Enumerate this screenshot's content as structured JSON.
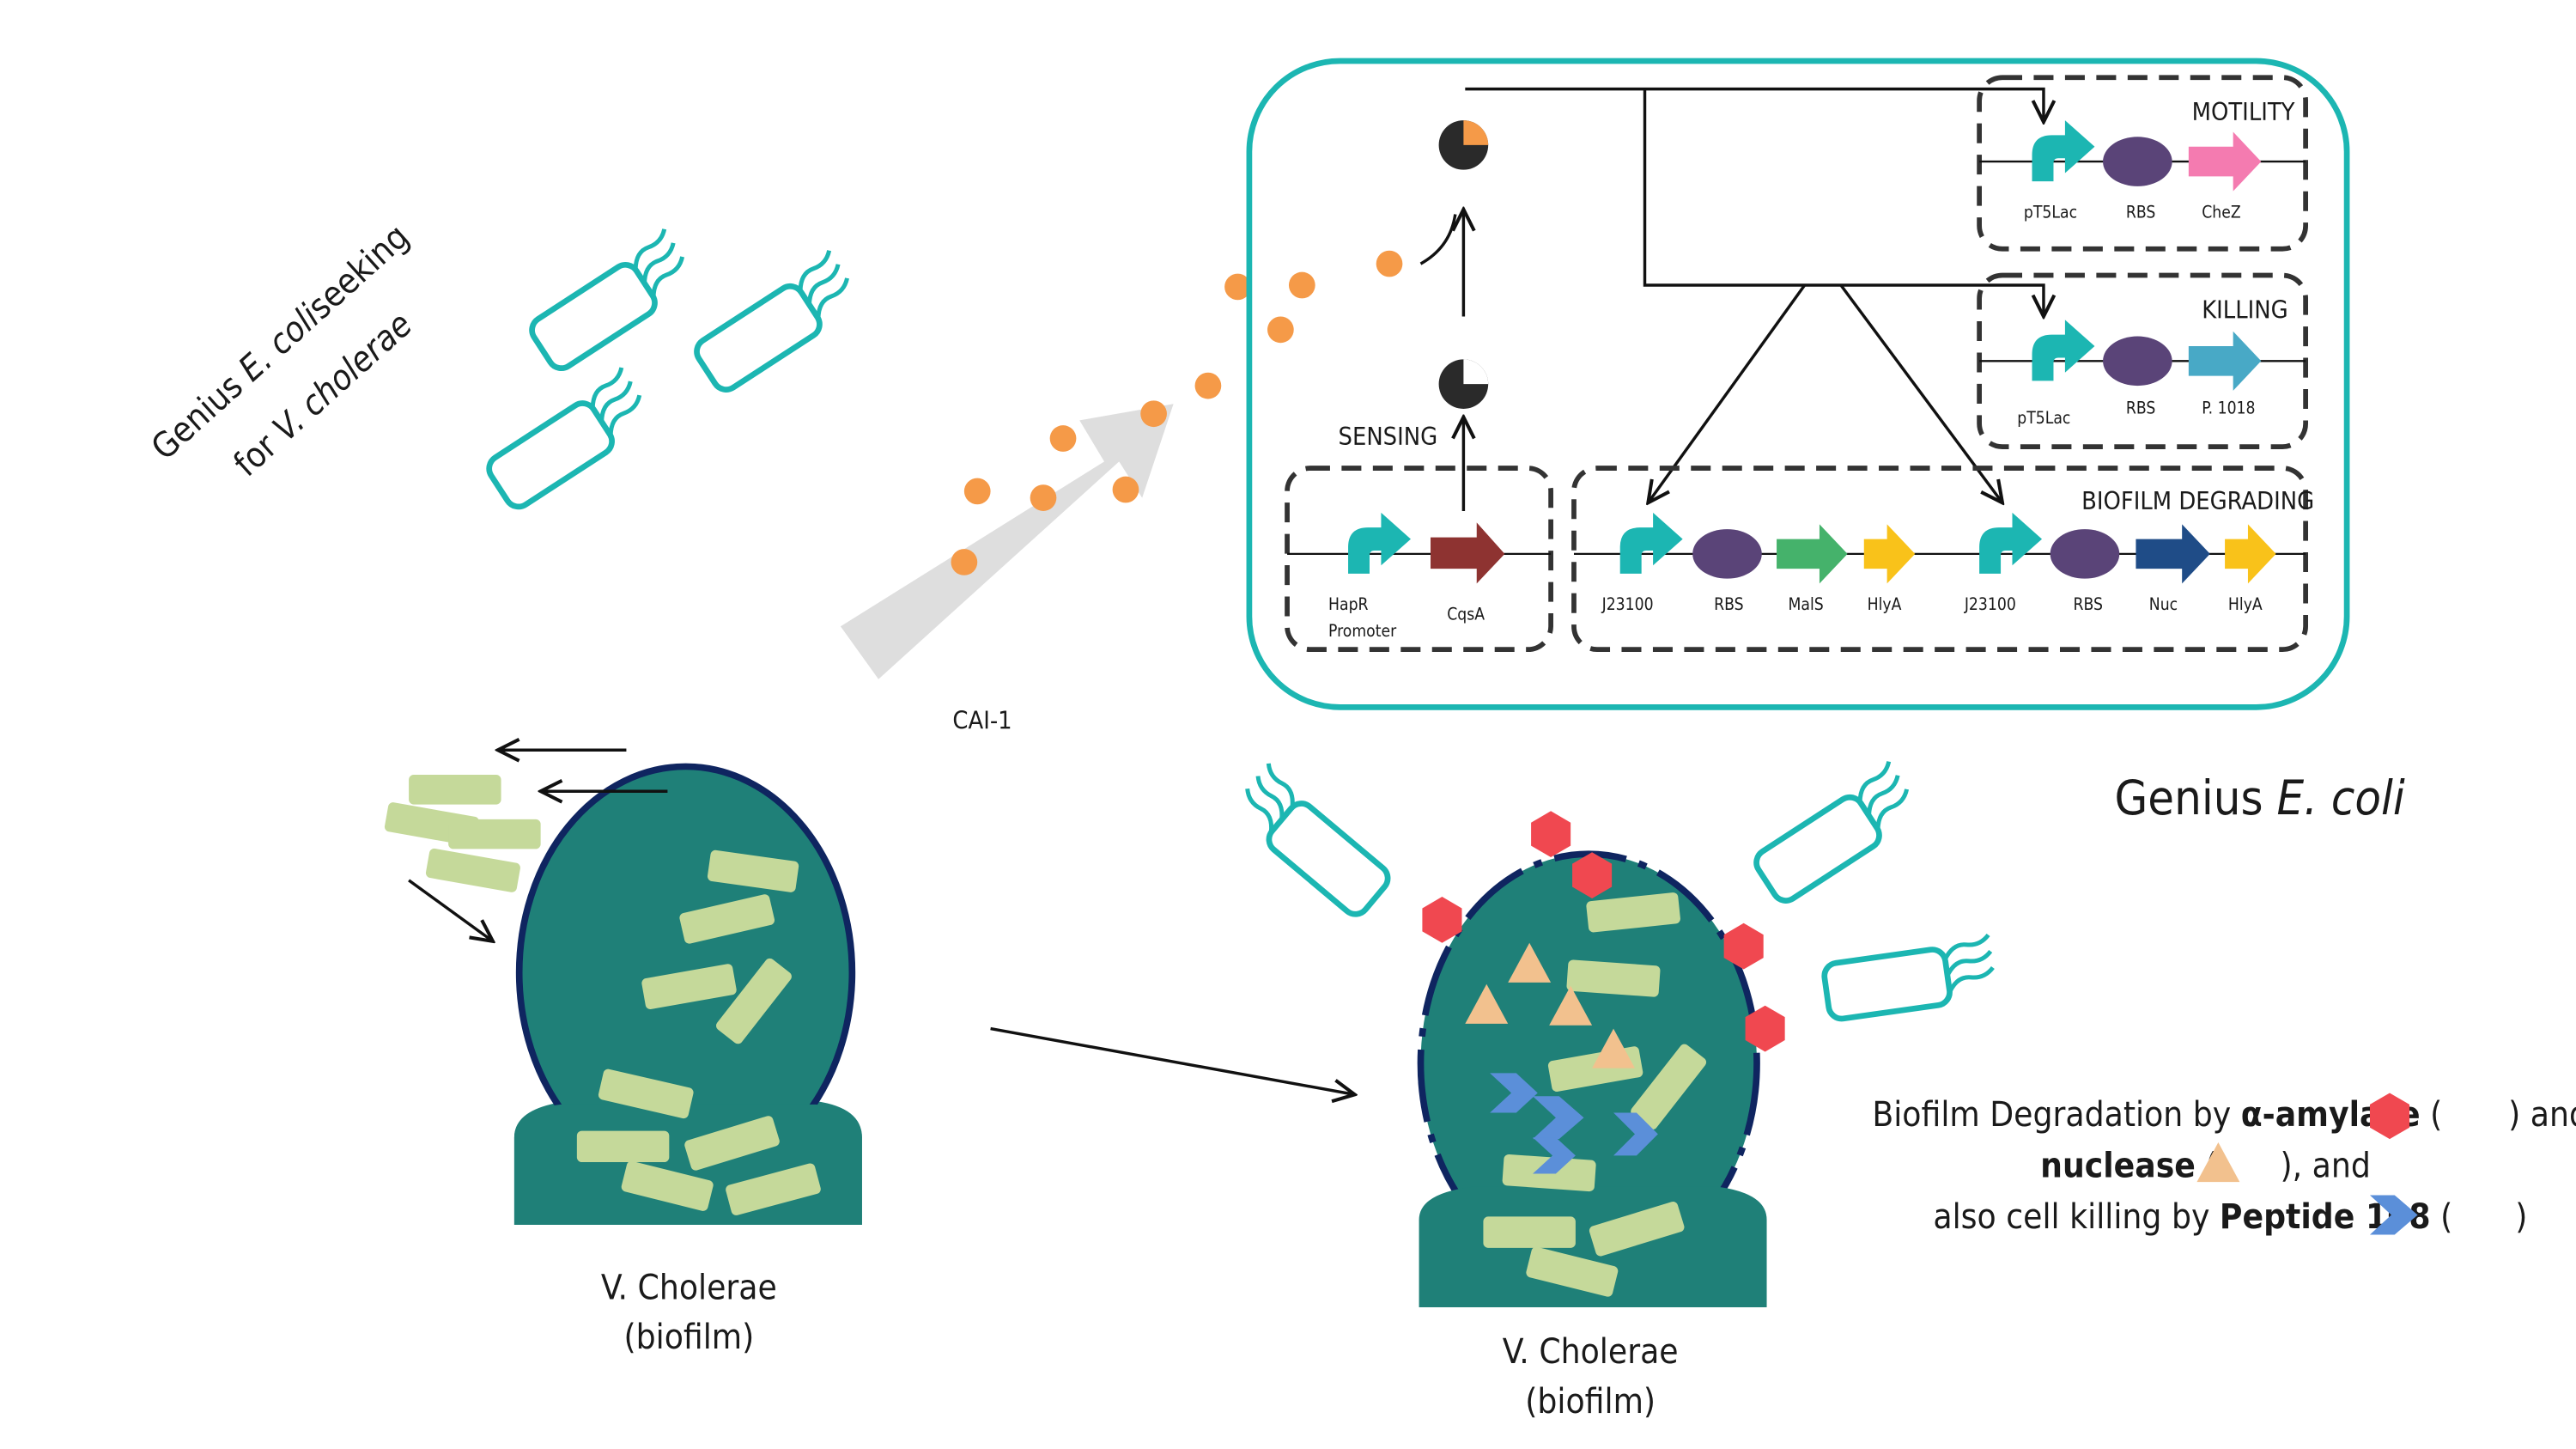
{
  "colors": {
    "teal": "#1cb6b2",
    "biofilm": "#1f8078",
    "biofilm_border": "#0f2560",
    "rod": "#c5d99a",
    "orange_dot": "#f59a48",
    "arrow_gray": "#dedede",
    "rbs": "#5a4478",
    "cqsa": "#8e3331",
    "chez": "#f47bb0",
    "p1018": "#48a9c6",
    "mals": "#45b26b",
    "hlya": "#f9c21a",
    "nuc": "#1f4c87",
    "amylase_hex": "#f04850",
    "nuclease_tri": "#f2c18e",
    "peptide_chevron": "#5b8fd9"
  },
  "seeking_label": {
    "line1_pre": "Genius ",
    "line1_italic": "E. coli",
    "line1_post": "seeking",
    "line2_pre": "for ",
    "line2_italic": "V. cholerae"
  },
  "cai_label": "CAI-1",
  "circuit": {
    "motility": {
      "title": "MOTILITY",
      "parts": [
        "pT5Lac",
        "RBS",
        "CheZ"
      ]
    },
    "killing": {
      "title": "KILLING",
      "parts": [
        "pT5Lac",
        "RBS",
        "P. 1018"
      ]
    },
    "sensing": {
      "title": "SENSING",
      "parts": [
        "HapR",
        "Promoter",
        "CqsA"
      ]
    },
    "degrading": {
      "title": "BIOFILM DEGRADING",
      "parts": [
        "J23100",
        "RBS",
        "MalS",
        "HlyA",
        "J23100",
        "RBS",
        "Nuc",
        "HlyA"
      ]
    }
  },
  "genius_label": {
    "pre": "Genius ",
    "italic": "E. coli"
  },
  "biofilm_left": {
    "line1": "V. Cholerae",
    "line2": "(biofilm)"
  },
  "biofilm_right": {
    "line1": "V. Cholerae",
    "line2": "(biofilm)"
  },
  "legend": {
    "l1_a": "Biofilm Degradation by ",
    "l1_b": "α-amylase",
    "l1_c": " (",
    "l1_d": " ) and",
    "l2_a": "nuclease",
    "l2_b": " (",
    "l2_c": " ), and",
    "l3_a": "also cell killing by ",
    "l3_b": "Peptide 108",
    "l3_c": " (",
    "l3_d": " )"
  }
}
